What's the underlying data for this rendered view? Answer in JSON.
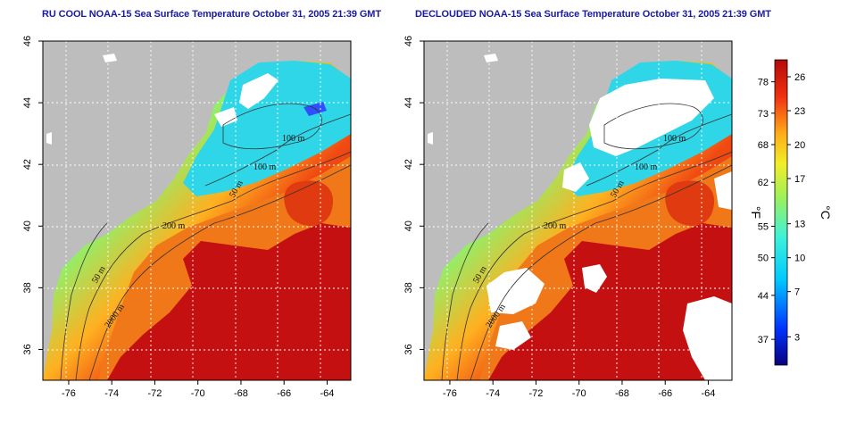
{
  "titles": {
    "left": "RU COOL NOAA-15 Sea Surface Temperature October 31, 2005 21:39 GMT",
    "right": "DECLOUDED NOAA-15 Sea Surface Temperature October 31, 2005 21:39 GMT"
  },
  "axes": {
    "lon_ticks": [
      -76,
      -74,
      -72,
      -70,
      -68,
      -66,
      -64
    ],
    "lon_labels": [
      "-76",
      "-74",
      "-72",
      "-70",
      "-68",
      "-66",
      "-64"
    ],
    "lat_ticks": [
      36,
      38,
      40,
      42,
      44,
      46
    ],
    "lat_labels": [
      "36",
      "38",
      "40",
      "42",
      "44",
      "46"
    ],
    "lon_range": [
      -77.2,
      -62.9
    ],
    "lat_range": [
      35.0,
      46.0
    ]
  },
  "contour_labels": {
    "m100a": "100 m",
    "m100b": "100 m",
    "m50a": "50 m",
    "m200": "200 m",
    "m50b": "50 m",
    "m2000": "2000 m"
  },
  "colorbar": {
    "fahrenheit_label": "°F",
    "celsius_label": "°C",
    "fahrenheit_ticks": [
      "78",
      "73",
      "68",
      "62",
      "55",
      "50",
      "44",
      "37"
    ],
    "fahrenheit_values": [
      78,
      73,
      68,
      62,
      55,
      50,
      44,
      37
    ],
    "celsius_ticks": [
      "26",
      "23",
      "20",
      "17",
      "13",
      "10",
      "7",
      "3"
    ],
    "celsius_values": [
      26,
      23,
      20,
      17,
      13,
      10,
      7,
      3
    ],
    "range_c": [
      0.5,
      27.5
    ],
    "colors": [
      "#0b0080",
      "#0033ff",
      "#00c8ff",
      "#3ef2d8",
      "#9ff05a",
      "#f2ee28",
      "#ffaa18",
      "#f03010",
      "#b40a0a"
    ]
  },
  "colors": {
    "land": "#bdbdbd",
    "cloud": "#ffffff",
    "title": "#1a1aa6"
  }
}
